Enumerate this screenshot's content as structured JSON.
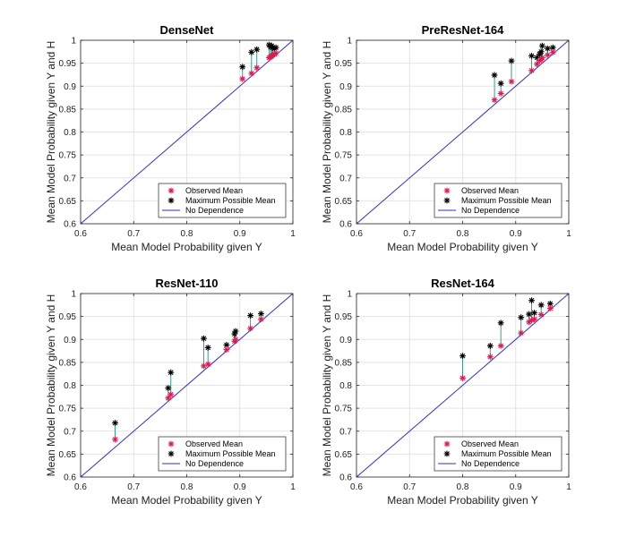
{
  "chart_data": [
    {
      "type": "scatter",
      "title": "DenseNet",
      "xlabel": "Mean Model Probability given Y",
      "ylabel": "Mean Model Probability given Y and H",
      "xlim": [
        0.6,
        1
      ],
      "ylim": [
        0.6,
        1
      ],
      "xticks": [
        "0.6",
        "0.7",
        "0.8",
        "0.9",
        "1"
      ],
      "yticks": [
        "0.6",
        "0.65",
        "0.7",
        "0.75",
        "0.8",
        "0.85",
        "0.9",
        "0.95",
        "1"
      ],
      "grid": true,
      "legend": [
        "Observed Mean",
        "Maximum Possible Mean",
        "No Dependence"
      ],
      "legend_position": "bottom-right",
      "series": [
        {
          "name": "Observed Mean",
          "color": "#e0194f",
          "x": [
            0.905,
            0.922,
            0.932,
            0.955,
            0.958,
            0.96,
            0.962,
            0.965,
            0.968
          ],
          "y": [
            0.916,
            0.928,
            0.94,
            0.962,
            0.964,
            0.966,
            0.968,
            0.97,
            0.972
          ]
        },
        {
          "name": "Maximum Possible Mean",
          "color": "#000000",
          "x": [
            0.905,
            0.922,
            0.932,
            0.955,
            0.958,
            0.96,
            0.962,
            0.965,
            0.968
          ],
          "y": [
            0.942,
            0.974,
            0.98,
            0.99,
            0.985,
            0.988,
            0.984,
            0.982,
            0.984
          ]
        },
        {
          "name": "No Dependence",
          "color": "#2b2bd6",
          "x": [
            0.6,
            1
          ],
          "y": [
            0.6,
            1
          ]
        }
      ]
    },
    {
      "type": "scatter",
      "title": "PreResNet-164",
      "xlabel": "Mean Model Probability given Y",
      "ylabel": "Mean Model Probability given Y and H",
      "xlim": [
        0.6,
        1
      ],
      "ylim": [
        0.6,
        1
      ],
      "xticks": [
        "0.6",
        "0.7",
        "0.8",
        "0.9",
        "1"
      ],
      "yticks": [
        "0.6",
        "0.65",
        "0.7",
        "0.75",
        "0.8",
        "0.85",
        "0.9",
        "0.95",
        "1"
      ],
      "grid": true,
      "legend": [
        "Observed Mean",
        "Maximum Possible Mean",
        "No Dependence"
      ],
      "legend_position": "bottom-right",
      "series": [
        {
          "name": "Observed Mean",
          "color": "#e0194f",
          "x": [
            0.86,
            0.872,
            0.892,
            0.93,
            0.94,
            0.945,
            0.948,
            0.95,
            0.96,
            0.97
          ],
          "y": [
            0.87,
            0.884,
            0.91,
            0.934,
            0.948,
            0.956,
            0.958,
            0.962,
            0.968,
            0.974
          ]
        },
        {
          "name": "Maximum Possible Mean",
          "color": "#000000",
          "x": [
            0.86,
            0.872,
            0.892,
            0.93,
            0.94,
            0.945,
            0.948,
            0.95,
            0.96,
            0.97
          ],
          "y": [
            0.924,
            0.906,
            0.955,
            0.966,
            0.962,
            0.97,
            0.975,
            0.988,
            0.982,
            0.984
          ]
        },
        {
          "name": "No Dependence",
          "color": "#2b2bd6",
          "x": [
            0.6,
            1
          ],
          "y": [
            0.6,
            1
          ]
        }
      ]
    },
    {
      "type": "scatter",
      "title": "ResNet-110",
      "xlabel": "Mean Model Probability given Y",
      "ylabel": "Mean Model Probability given Y and H",
      "xlim": [
        0.6,
        1
      ],
      "ylim": [
        0.6,
        1
      ],
      "xticks": [
        "0.6",
        "0.7",
        "0.8",
        "0.9",
        "1"
      ],
      "yticks": [
        "0.6",
        "0.65",
        "0.7",
        "0.75",
        "0.8",
        "0.85",
        "0.9",
        "0.95",
        "1"
      ],
      "grid": true,
      "legend": [
        "Observed Mean",
        "Maximum Possible Mean",
        "No Dependence"
      ],
      "legend_position": "bottom-right",
      "series": [
        {
          "name": "Observed Mean",
          "color": "#e0194f",
          "x": [
            0.665,
            0.765,
            0.77,
            0.832,
            0.84,
            0.875,
            0.89,
            0.892,
            0.92,
            0.94
          ],
          "y": [
            0.682,
            0.772,
            0.78,
            0.842,
            0.846,
            0.878,
            0.896,
            0.9,
            0.924,
            0.944
          ]
        },
        {
          "name": "Maximum Possible Mean",
          "color": "#000000",
          "x": [
            0.665,
            0.765,
            0.77,
            0.832,
            0.84,
            0.875,
            0.89,
            0.892,
            0.92,
            0.94
          ],
          "y": [
            0.718,
            0.794,
            0.828,
            0.902,
            0.882,
            0.888,
            0.912,
            0.918,
            0.952,
            0.956
          ]
        },
        {
          "name": "No Dependence",
          "color": "#2b2bd6",
          "x": [
            0.6,
            1
          ],
          "y": [
            0.6,
            1
          ]
        }
      ]
    },
    {
      "type": "scatter",
      "title": "ResNet-164",
      "xlabel": "Mean Model Probability given Y",
      "ylabel": "Mean Model Probability given Y and H",
      "xlim": [
        0.6,
        1
      ],
      "ylim": [
        0.6,
        1
      ],
      "xticks": [
        "0.6",
        "0.7",
        "0.8",
        "0.9",
        "1"
      ],
      "yticks": [
        "0.6",
        "0.65",
        "0.7",
        "0.75",
        "0.8",
        "0.85",
        "0.9",
        "0.95",
        "1"
      ],
      "grid": true,
      "legend": [
        "Observed Mean",
        "Maximum Possible Mean",
        "No Dependence"
      ],
      "legend_position": "bottom-right",
      "series": [
        {
          "name": "Observed Mean",
          "color": "#e0194f",
          "x": [
            0.8,
            0.852,
            0.872,
            0.91,
            0.925,
            0.93,
            0.935,
            0.948,
            0.965
          ],
          "y": [
            0.816,
            0.862,
            0.886,
            0.914,
            0.938,
            0.942,
            0.944,
            0.954,
            0.968
          ]
        },
        {
          "name": "Maximum Possible Mean",
          "color": "#000000",
          "x": [
            0.8,
            0.852,
            0.872,
            0.91,
            0.925,
            0.93,
            0.935,
            0.948,
            0.965
          ],
          "y": [
            0.864,
            0.886,
            0.936,
            0.948,
            0.955,
            0.985,
            0.958,
            0.975,
            0.978
          ]
        },
        {
          "name": "No Dependence",
          "color": "#2b2bd6",
          "x": [
            0.6,
            1
          ],
          "y": [
            0.6,
            1
          ]
        }
      ]
    }
  ]
}
